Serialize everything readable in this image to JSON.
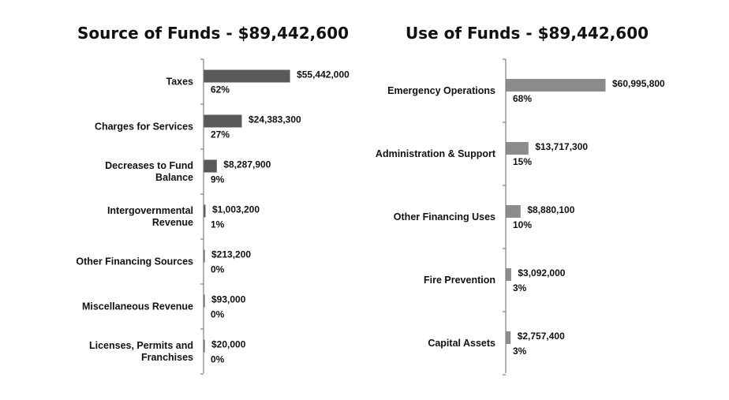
{
  "chart_data": [
    {
      "type": "bar",
      "orientation": "horizontal",
      "title": "Source of Funds - $89,442,600",
      "bar_color": "#595959",
      "categories": [
        "Taxes",
        "Charges for Services",
        "Decreases to Fund Balance",
        "Intergovernmental Revenue",
        "Other Financing Sources",
        "Miscellaneous Revenue",
        "Licenses, Permits and Franchises"
      ],
      "values": [
        55442000,
        24383300,
        8287900,
        1003200,
        213200,
        93000,
        20000
      ],
      "value_labels": [
        "$55,442,000",
        "$24,383,300",
        "$8,287,900",
        "$1,003,200",
        "$213,200",
        "$93,000",
        "$20,000"
      ],
      "percent_labels": [
        "62%",
        "27%",
        "9%",
        "1%",
        "0%",
        "0%",
        "0%"
      ],
      "xlim": [
        0,
        60995800
      ]
    },
    {
      "type": "bar",
      "orientation": "horizontal",
      "title": "Use of Funds - $89,442,600",
      "bar_color": "#8c8c8c",
      "categories": [
        "Emergency Operations",
        "Administration & Support",
        "Other Financing Uses",
        "Fire Prevention",
        "Capital Assets"
      ],
      "values": [
        60995800,
        13717300,
        8880100,
        3092000,
        2757400
      ],
      "value_labels": [
        "$60,995,800",
        "$13,717,300",
        "$8,880,100",
        "$3,092,000",
        "$2,757,400"
      ],
      "percent_labels": [
        "68%",
        "15%",
        "10%",
        "3%",
        "3%"
      ],
      "xlim": [
        0,
        60995800
      ]
    }
  ]
}
